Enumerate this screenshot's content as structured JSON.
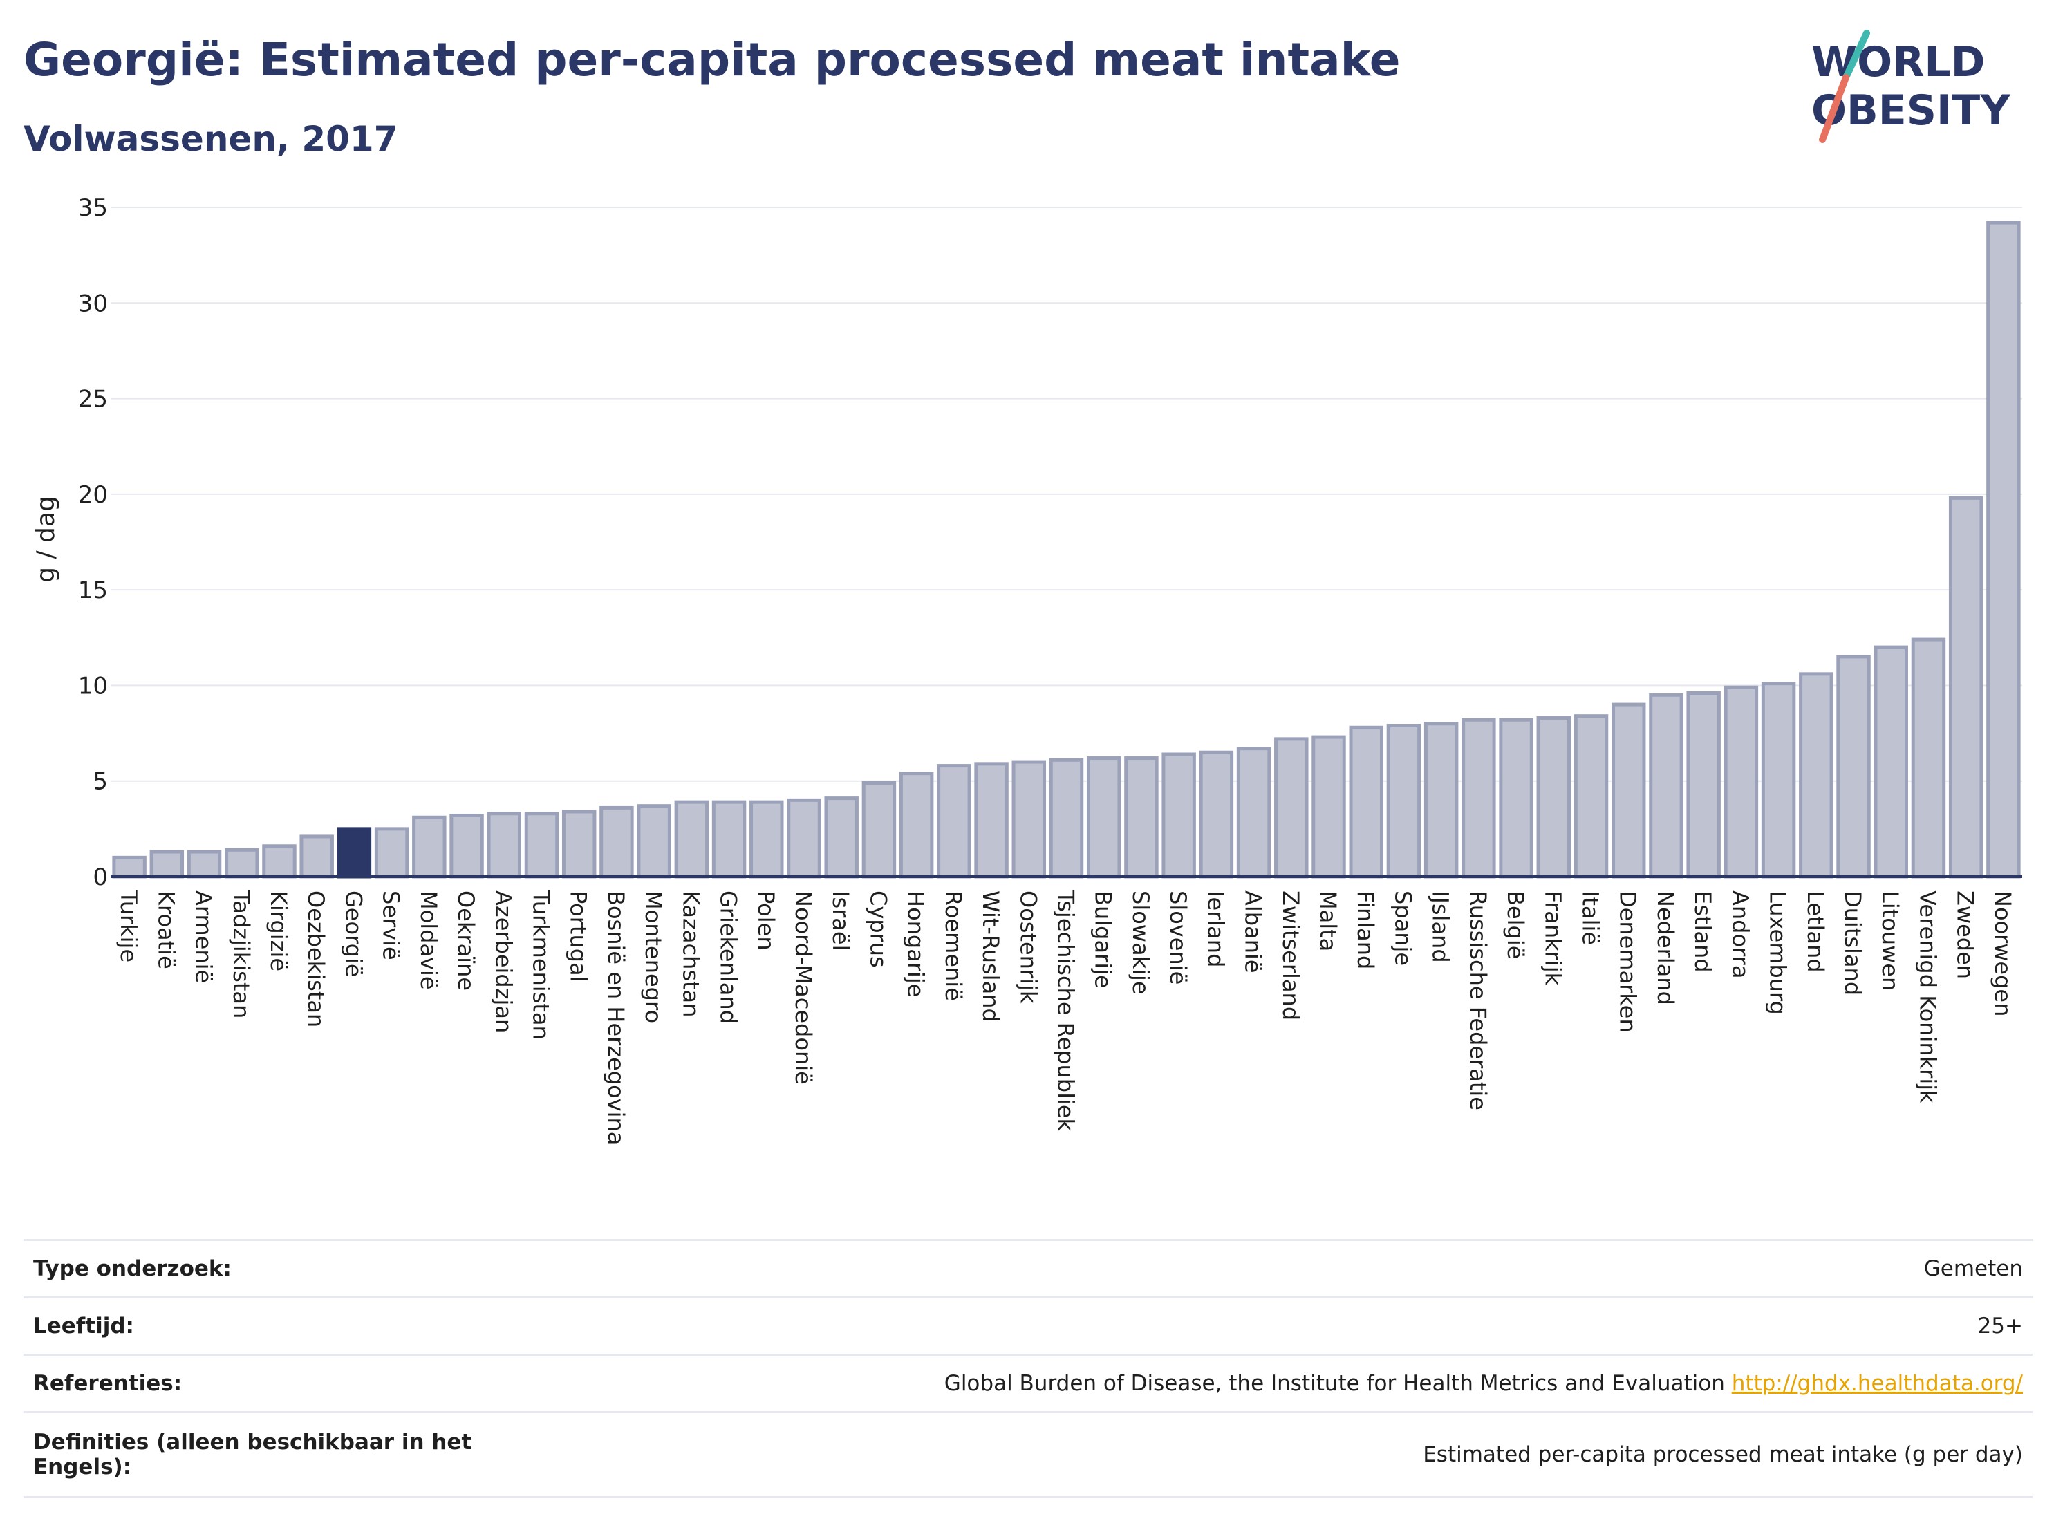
{
  "header": {
    "title": "Georgië: Estimated per-capita processed meat intake",
    "subtitle": "Volwassenen, 2017"
  },
  "logo": {
    "line1": "WORLD",
    "line2": "OBESITY"
  },
  "colors": {
    "bar": "#bfc3d1",
    "bar_stroke": "#9ba1b8",
    "highlight": "#2b3766",
    "title": "#2b3766",
    "link": "#e7a300"
  },
  "chart_data": {
    "type": "bar",
    "title": "Georgië: Estimated per-capita processed meat intake",
    "subtitle": "Volwassenen, 2017",
    "xlabel": "",
    "ylabel": "g / dag",
    "ylim": [
      0,
      35
    ],
    "yticks": [
      0,
      5,
      10,
      15,
      20,
      25,
      30,
      35
    ],
    "grid": true,
    "highlight": "Georgië",
    "categories": [
      "Turkije",
      "Kroatië",
      "Armenië",
      "Tadzjikistan",
      "Kirgizië",
      "Oezbekistan",
      "Georgië",
      "Servië",
      "Moldavië",
      "Oekraïne",
      "Azerbeidzjan",
      "Turkmenistan",
      "Portugal",
      "Bosnië en Herzegovina",
      "Montenegro",
      "Kazachstan",
      "Griekenland",
      "Polen",
      "Noord-Macedonië",
      "Israël",
      "Cyprus",
      "Hongarije",
      "Roemenië",
      "Wit-Rusland",
      "Oostenrijk",
      "Tsjechische Republiek",
      "Bulgarije",
      "Slowakije",
      "Slovenië",
      "Ierland",
      "Albanië",
      "Zwitserland",
      "Malta",
      "Finland",
      "Spanje",
      "IJsland",
      "Russische Federatie",
      "België",
      "Frankrijk",
      "Italië",
      "Denemarken",
      "Nederland",
      "Estland",
      "Andorra",
      "Luxemburg",
      "Letland",
      "Duitsland",
      "Litouwen",
      "Verenigd Koninkrijk",
      "Zweden",
      "Noorwegen"
    ],
    "values": [
      1.0,
      1.3,
      1.3,
      1.4,
      1.6,
      2.1,
      2.5,
      2.5,
      3.1,
      3.2,
      3.3,
      3.3,
      3.4,
      3.6,
      3.7,
      3.9,
      3.9,
      3.9,
      4.0,
      4.1,
      4.9,
      5.4,
      5.8,
      5.9,
      6.0,
      6.1,
      6.2,
      6.2,
      6.4,
      6.5,
      6.7,
      7.2,
      7.3,
      7.8,
      7.9,
      8.0,
      8.2,
      8.2,
      8.3,
      8.4,
      9.0,
      9.5,
      9.6,
      9.9,
      10.1,
      10.6,
      11.5,
      12.0,
      12.4,
      19.8,
      34.2
    ]
  },
  "meta": {
    "rows": [
      {
        "label": "Type onderzoek:",
        "value": "Gemeten"
      },
      {
        "label": "Leeftijd:",
        "value": "25+"
      },
      {
        "label": "Referenties:",
        "value": "Global Burden of Disease, the Institute for Health Metrics and Evaluation",
        "link": "http://ghdx.healthdata.org/"
      },
      {
        "label": "Definities (alleen beschikbaar in het Engels):",
        "value": "Estimated per-capita processed meat intake (g per day)"
      }
    ]
  }
}
